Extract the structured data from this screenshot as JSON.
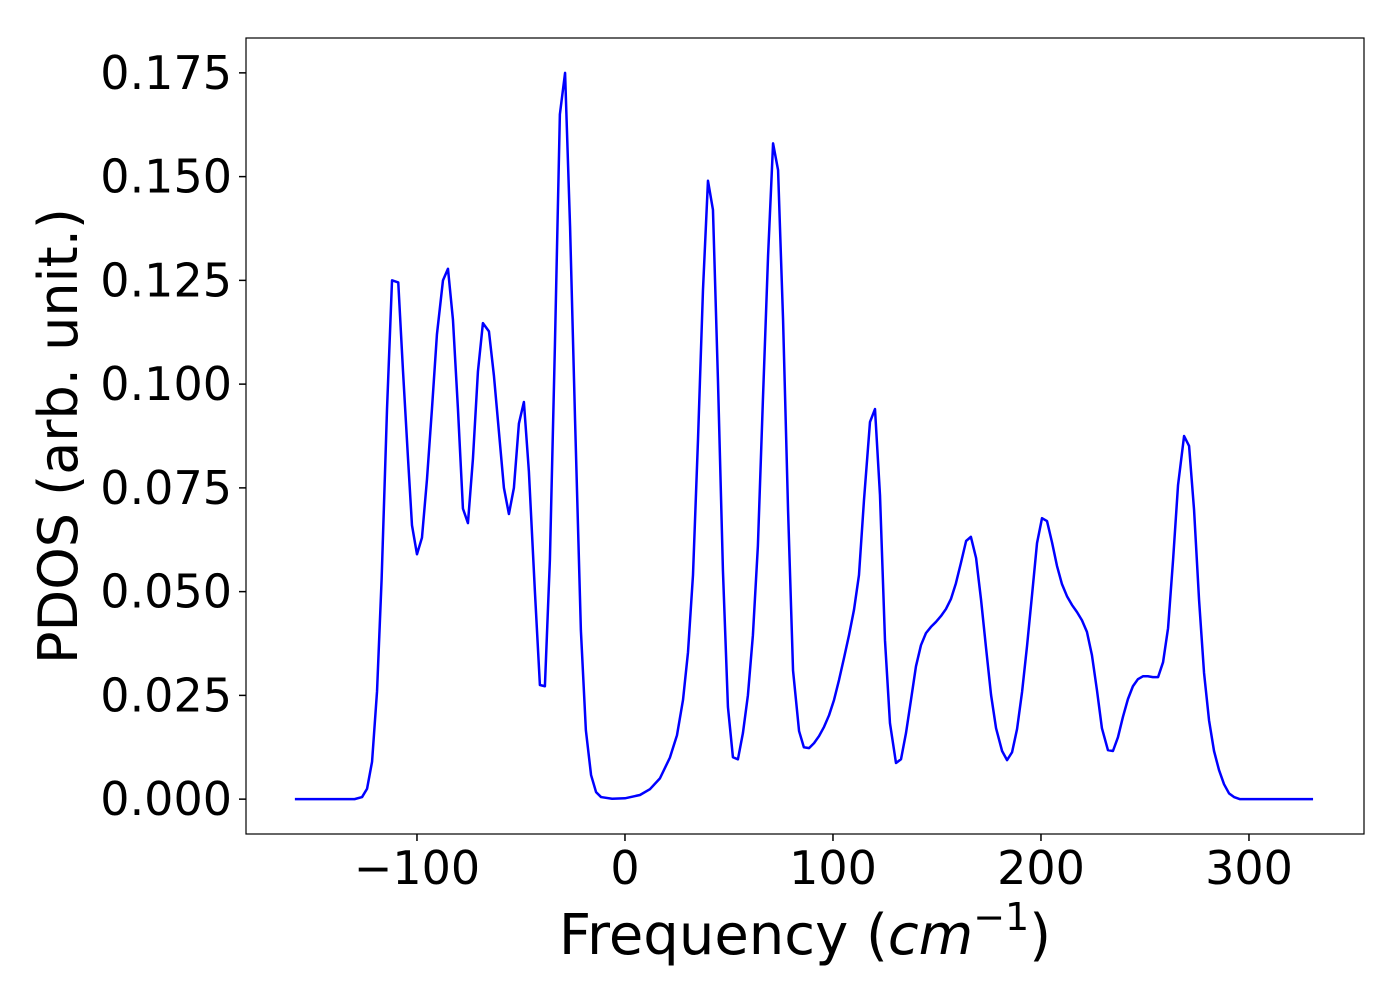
{
  "chart_data": {
    "type": "line",
    "x_label": [
      "Frequency (",
      "cm",
      "−1",
      ")"
    ],
    "y_label": "PDOS (arb. unit.)",
    "xlim": [
      -182.2,
      355.3
    ],
    "ylim": [
      -0.0084,
      0.1834
    ],
    "xticks": [
      {
        "value": -100,
        "label": "−100"
      },
      0,
      100,
      200,
      300
    ],
    "yticks": [
      {
        "value": 0,
        "label": "0.000"
      },
      {
        "value": 0.025,
        "label": "0.025"
      },
      {
        "value": 0.05,
        "label": "0.050"
      },
      {
        "value": 0.075,
        "label": "0.075"
      },
      {
        "value": 0.1,
        "label": "0.100"
      },
      {
        "value": 0.125,
        "label": "0.125"
      },
      {
        "value": 0.15,
        "label": "0.150"
      },
      {
        "value": 0.175,
        "label": "0.175"
      }
    ],
    "grid": false,
    "series": [
      {
        "color": "#0000ff",
        "x": [
          -158.7,
          -130,
          -126.4,
          -124,
          -121.6,
          -119.2,
          -117,
          -114.4,
          -112,
          -109,
          -106.7,
          -104.3,
          -102.4,
          -100,
          -97.6,
          -95.2,
          -92.8,
          -90.4,
          -87.5,
          -85.1,
          -82.7,
          -80.3,
          -77.9,
          -75.5,
          -73.1,
          -70.7,
          -68.3,
          -65.4,
          -63,
          -60.6,
          -58.2,
          -55.8,
          -53.4,
          -51,
          -48.6,
          -46.2,
          -43.3,
          -40.9,
          -38.5,
          -36.1,
          -33.7,
          -31.3,
          -28.8,
          -26.4,
          -24,
          -21.2,
          -18.8,
          -16.3,
          -13.9,
          -11.5,
          -6.2,
          0,
          7.2,
          12,
          16.8,
          21.6,
          25,
          27.9,
          30.3,
          32.7,
          35.1,
          37.5,
          39.9,
          42.3,
          44.7,
          47.1,
          49.5,
          51.9,
          54.3,
          56.7,
          59.1,
          61.5,
          63.9,
          66.3,
          68.8,
          71.2,
          73.6,
          76,
          78.4,
          80.8,
          83.7,
          86,
          88.5,
          90.9,
          93.3,
          95.7,
          98.1,
          100.5,
          102.9,
          105.3,
          107.7,
          110.1,
          112.5,
          114.9,
          117.8,
          120.2,
          122.6,
          125,
          127.4,
          130.3,
          132.7,
          135.1,
          137.5,
          139.9,
          142.3,
          144.7,
          147.1,
          149.5,
          151.9,
          154.3,
          156.7,
          159.1,
          161.5,
          164,
          166.3,
          168.8,
          171.2,
          173.6,
          176,
          178.4,
          181.3,
          183.7,
          186.1,
          188.5,
          190.9,
          193.3,
          195.7,
          198.1,
          200.5,
          202.9,
          205.3,
          207.7,
          210.1,
          212.5,
          214.9,
          217.3,
          219.7,
          222.1,
          224.5,
          226.9,
          229.3,
          232.2,
          234.6,
          237,
          239.4,
          241.8,
          244.2,
          246.6,
          249,
          251.4,
          253.8,
          256.3,
          258.7,
          261.1,
          263.5,
          265.9,
          268.8,
          271.2,
          273.6,
          276,
          278.4,
          280.8,
          283.2,
          285.6,
          288,
          290.4,
          292.8,
          295.7,
          330.8
        ],
        "values": [
          0,
          0,
          0.0005,
          0.0025,
          0.009,
          0.026,
          0.053,
          0.094,
          0.125,
          0.1245,
          0.103,
          0.082,
          0.066,
          0.059,
          0.063,
          0.077,
          0.094,
          0.112,
          0.125,
          0.1278,
          0.1155,
          0.094,
          0.07,
          0.0665,
          0.082,
          0.103,
          0.1147,
          0.1127,
          0.102,
          0.0885,
          0.075,
          0.0687,
          0.075,
          0.0905,
          0.0957,
          0.079,
          0.05,
          0.0275,
          0.0272,
          0.0576,
          0.109,
          0.165,
          0.175,
          0.138,
          0.0913,
          0.0407,
          0.0166,
          0.0058,
          0.0017,
          0.0005,
          0.0001,
          0.0002,
          0.001,
          0.0024,
          0.005,
          0.01,
          0.0154,
          0.0239,
          0.0354,
          0.054,
          0.0865,
          0.1227,
          0.149,
          0.142,
          0.101,
          0.055,
          0.0222,
          0.0101,
          0.0096,
          0.0159,
          0.025,
          0.0395,
          0.061,
          0.096,
          0.131,
          0.158,
          0.1516,
          0.1155,
          0.0697,
          0.031,
          0.0164,
          0.0125,
          0.0123,
          0.0135,
          0.0152,
          0.0174,
          0.0202,
          0.0239,
          0.0287,
          0.034,
          0.0395,
          0.0456,
          0.054,
          0.072,
          0.0909,
          0.094,
          0.0733,
          0.0383,
          0.0183,
          0.0087,
          0.0096,
          0.0159,
          0.0239,
          0.032,
          0.0371,
          0.04,
          0.0415,
          0.0427,
          0.0441,
          0.0458,
          0.0482,
          0.052,
          0.0569,
          0.0622,
          0.0632,
          0.0581,
          0.048,
          0.0364,
          0.0251,
          0.0171,
          0.0116,
          0.0094,
          0.0113,
          0.0169,
          0.0258,
          0.0369,
          0.0492,
          0.0617,
          0.0677,
          0.067,
          0.0619,
          0.0562,
          0.0518,
          0.0489,
          0.0468,
          0.0451,
          0.0431,
          0.0403,
          0.0347,
          0.0263,
          0.0171,
          0.0118,
          0.0116,
          0.0149,
          0.0198,
          0.0241,
          0.0272,
          0.0289,
          0.0296,
          0.0296,
          0.0294,
          0.0294,
          0.033,
          0.0412,
          0.0576,
          0.0757,
          0.0875,
          0.0851,
          0.0697,
          0.048,
          0.0304,
          0.019,
          0.0116,
          0.007,
          0.0036,
          0.0014,
          0.0005,
          0,
          0
        ]
      }
    ]
  }
}
